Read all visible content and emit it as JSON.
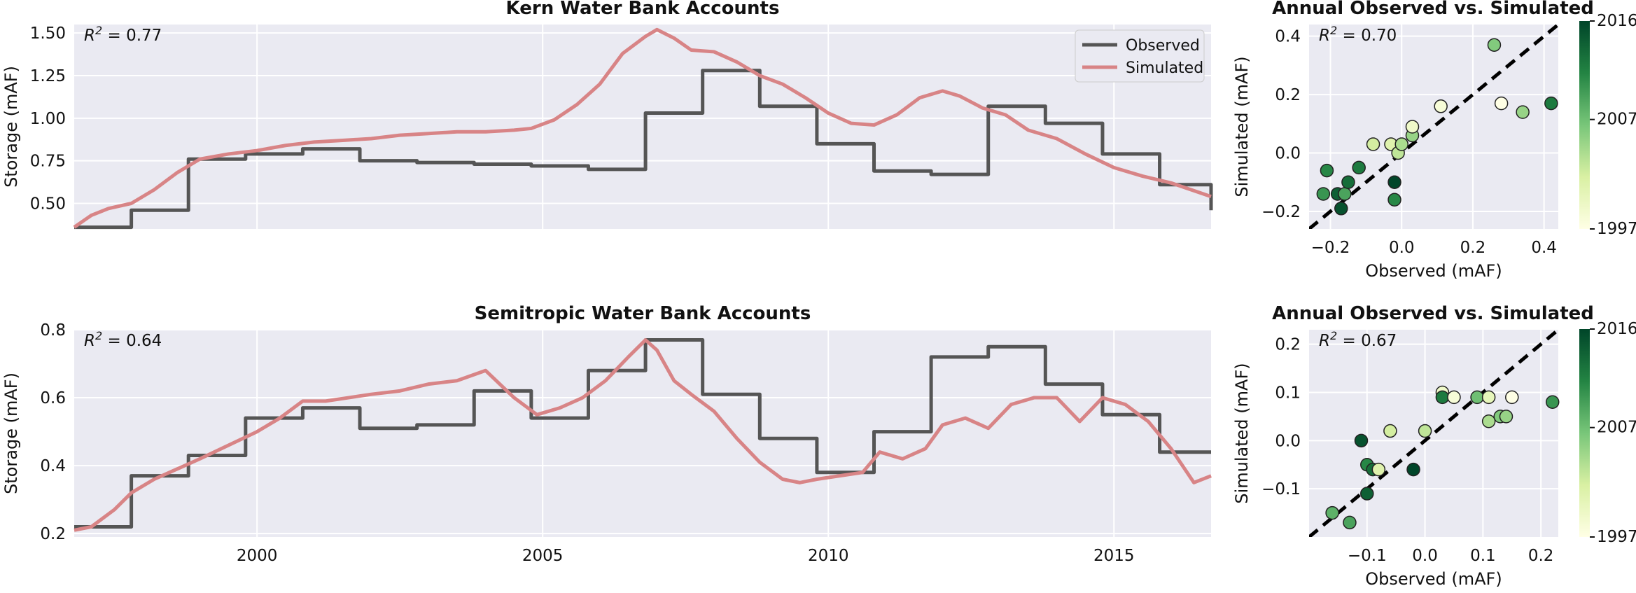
{
  "chart_data": [
    {
      "id": "kern_ts",
      "type": "line",
      "title": "Kern Water Bank Accounts",
      "ylabel": "Storage (mAF)",
      "xlabel": "",
      "xlim": [
        1996.8,
        2016.7
      ],
      "ylim": [
        0.35,
        1.55
      ],
      "yticks": [
        0.5,
        0.75,
        1.0,
        1.25,
        1.5
      ],
      "ytick_labels": [
        "0.50",
        "0.75",
        "1.00",
        "1.25",
        "1.50"
      ],
      "xticks": [
        2000,
        2005,
        2010,
        2015
      ],
      "xtick_labels": [],
      "grid": true,
      "annotation": {
        "prefix": "R",
        "sup": "2",
        "text": " = 0.77"
      },
      "legend": {
        "position": "top-right",
        "entries": [
          "Observed",
          "Simulated"
        ]
      },
      "series": [
        {
          "name": "Observed",
          "color": "#555555",
          "step": true,
          "x": [
            1996.8,
            1997.8,
            1998.8,
            1999.8,
            2000.8,
            2001.8,
            2002.8,
            2003.8,
            2004.8,
            2005.8,
            2006.8,
            2007.8,
            2008.8,
            2009.8,
            2010.8,
            2011.8,
            2012.8,
            2013.8,
            2014.8,
            2015.8,
            2016.7
          ],
          "y": [
            0.36,
            0.46,
            0.76,
            0.79,
            0.82,
            0.75,
            0.74,
            0.73,
            0.72,
            0.7,
            1.03,
            1.28,
            1.07,
            0.85,
            0.69,
            0.67,
            1.07,
            0.97,
            0.79,
            0.61,
            0.46
          ]
        },
        {
          "name": "Simulated",
          "color": "#d88486",
          "step": false,
          "x": [
            1996.8,
            1997.1,
            1997.4,
            1997.8,
            1998.2,
            1998.6,
            1999.0,
            1999.5,
            2000.0,
            2000.5,
            2001.0,
            2001.5,
            2002.0,
            2002.5,
            2003.0,
            2003.5,
            2004.0,
            2004.5,
            2004.8,
            2005.2,
            2005.6,
            2006.0,
            2006.4,
            2006.8,
            2007.0,
            2007.3,
            2007.6,
            2008.0,
            2008.4,
            2008.8,
            2009.2,
            2009.6,
            2010.0,
            2010.4,
            2010.8,
            2011.2,
            2011.6,
            2012.0,
            2012.3,
            2012.7,
            2013.1,
            2013.5,
            2014.0,
            2014.5,
            2015.0,
            2015.5,
            2016.0,
            2016.7
          ],
          "y": [
            0.36,
            0.43,
            0.47,
            0.5,
            0.58,
            0.68,
            0.76,
            0.79,
            0.81,
            0.84,
            0.86,
            0.87,
            0.88,
            0.9,
            0.91,
            0.92,
            0.92,
            0.93,
            0.94,
            0.99,
            1.08,
            1.2,
            1.38,
            1.48,
            1.52,
            1.47,
            1.4,
            1.39,
            1.33,
            1.25,
            1.2,
            1.12,
            1.03,
            0.97,
            0.96,
            1.02,
            1.12,
            1.16,
            1.13,
            1.06,
            1.02,
            0.93,
            0.88,
            0.79,
            0.71,
            0.66,
            0.62,
            0.54
          ]
        }
      ]
    },
    {
      "id": "kern_scatter",
      "type": "scatter",
      "title": "Annual Observed vs. Simulated",
      "xlabel": "Observed (mAF)",
      "ylabel": "Simulated (mAF)",
      "xlim": [
        -0.26,
        0.44
      ],
      "ylim": [
        -0.26,
        0.44
      ],
      "xticks": [
        -0.2,
        0.0,
        0.2,
        0.4
      ],
      "xtick_labels": [
        "−0.2",
        "0.0",
        "0.2",
        "0.4"
      ],
      "yticks": [
        -0.2,
        0.0,
        0.2,
        0.4
      ],
      "ytick_labels": [
        "−0.2",
        "0.0",
        "0.2",
        "0.4"
      ],
      "grid": true,
      "annotation": {
        "prefix": "R",
        "sup": "2",
        "text": " = 0.70"
      },
      "one_to_one_line": true,
      "colorbar": {
        "min": 1997,
        "max": 2016,
        "ticks": [
          1997,
          2007,
          2016
        ],
        "colors": [
          "#ffffe5",
          "#d9f0a3",
          "#78c679",
          "#238443",
          "#004529"
        ]
      },
      "points": [
        {
          "x": -0.22,
          "y": -0.14,
          "year": 2010
        },
        {
          "x": -0.21,
          "y": -0.06,
          "year": 2011
        },
        {
          "x": -0.18,
          "y": -0.14,
          "year": 2014
        },
        {
          "x": -0.17,
          "y": -0.19,
          "year": 2015
        },
        {
          "x": -0.16,
          "y": -0.14,
          "year": 2009
        },
        {
          "x": -0.15,
          "y": -0.1,
          "year": 2013
        },
        {
          "x": -0.12,
          "y": -0.05,
          "year": 2012
        },
        {
          "x": -0.02,
          "y": -0.1,
          "year": 2016
        },
        {
          "x": -0.02,
          "y": -0.16,
          "year": 2011
        },
        {
          "x": -0.08,
          "y": 0.03,
          "year": 2002
        },
        {
          "x": -0.03,
          "y": 0.03,
          "year": 2001
        },
        {
          "x": -0.01,
          "y": 0.0,
          "year": 2003
        },
        {
          "x": 0.0,
          "y": 0.03,
          "year": 2004
        },
        {
          "x": 0.03,
          "y": 0.06,
          "year": 2005
        },
        {
          "x": 0.03,
          "y": 0.09,
          "year": 1999
        },
        {
          "x": 0.11,
          "y": 0.16,
          "year": 1998
        },
        {
          "x": 0.26,
          "y": 0.37,
          "year": 2006
        },
        {
          "x": 0.28,
          "y": 0.17,
          "year": 1997
        },
        {
          "x": 0.34,
          "y": 0.14,
          "year": 2005
        },
        {
          "x": 0.42,
          "y": 0.17,
          "year": 2012
        }
      ]
    },
    {
      "id": "semi_ts",
      "type": "line",
      "title": "Semitropic Water Bank Accounts",
      "ylabel": "Storage (mAF)",
      "xlabel": "",
      "xlim": [
        1996.8,
        2016.7
      ],
      "ylim": [
        0.19,
        0.8
      ],
      "yticks": [
        0.2,
        0.4,
        0.6,
        0.8
      ],
      "ytick_labels": [
        "0.2",
        "0.4",
        "0.6",
        "0.8"
      ],
      "xticks": [
        2000,
        2005,
        2010,
        2015
      ],
      "xtick_labels": [
        "2000",
        "2005",
        "2010",
        "2015"
      ],
      "grid": true,
      "annotation": {
        "prefix": "R",
        "sup": "2",
        "text": " = 0.64"
      },
      "series": [
        {
          "name": "Observed",
          "color": "#555555",
          "step": true,
          "x": [
            1996.8,
            1997.8,
            1998.8,
            1999.8,
            2000.8,
            2001.8,
            2002.8,
            2003.8,
            2004.8,
            2005.8,
            2006.8,
            2007.8,
            2008.8,
            2009.8,
            2010.8,
            2011.8,
            2012.8,
            2013.8,
            2014.8,
            2015.8,
            2016.7
          ],
          "y": [
            0.22,
            0.37,
            0.43,
            0.54,
            0.57,
            0.51,
            0.52,
            0.62,
            0.54,
            0.68,
            0.77,
            0.61,
            0.48,
            0.38,
            0.5,
            0.72,
            0.75,
            0.64,
            0.55,
            0.44,
            0.44
          ]
        },
        {
          "name": "Simulated",
          "color": "#d88486",
          "step": false,
          "x": [
            1996.8,
            1997.1,
            1997.5,
            1997.8,
            1998.2,
            1998.6,
            1999.0,
            1999.5,
            2000.0,
            2000.4,
            2000.8,
            2001.2,
            2001.6,
            2002.0,
            2002.5,
            2003.0,
            2003.5,
            2004.0,
            2004.5,
            2004.9,
            2005.3,
            2005.7,
            2006.1,
            2006.5,
            2006.8,
            2007.0,
            2007.3,
            2007.6,
            2008.0,
            2008.4,
            2008.8,
            2009.2,
            2009.5,
            2009.8,
            2010.2,
            2010.6,
            2010.9,
            2011.3,
            2011.7,
            2012.0,
            2012.4,
            2012.8,
            2013.2,
            2013.6,
            2014.0,
            2014.4,
            2014.8,
            2015.2,
            2015.6,
            2016.0,
            2016.4,
            2016.7
          ],
          "y": [
            0.21,
            0.22,
            0.27,
            0.32,
            0.36,
            0.39,
            0.42,
            0.46,
            0.5,
            0.54,
            0.59,
            0.59,
            0.6,
            0.61,
            0.62,
            0.64,
            0.65,
            0.68,
            0.6,
            0.55,
            0.57,
            0.6,
            0.65,
            0.72,
            0.77,
            0.74,
            0.65,
            0.61,
            0.56,
            0.48,
            0.41,
            0.36,
            0.35,
            0.36,
            0.37,
            0.38,
            0.44,
            0.42,
            0.45,
            0.52,
            0.54,
            0.51,
            0.58,
            0.6,
            0.6,
            0.53,
            0.6,
            0.58,
            0.53,
            0.45,
            0.35,
            0.37
          ]
        }
      ]
    },
    {
      "id": "semi_scatter",
      "type": "scatter",
      "title": "Annual Observed vs. Simulated",
      "xlabel": "Observed (mAF)",
      "ylabel": "Simulated (mAF)",
      "xlim": [
        -0.2,
        0.23
      ],
      "ylim": [
        -0.2,
        0.23
      ],
      "xticks": [
        -0.1,
        0.0,
        0.1,
        0.2
      ],
      "xtick_labels": [
        "−0.1",
        "0.0",
        "0.1",
        "0.2"
      ],
      "yticks": [
        -0.1,
        0.0,
        0.1,
        0.2
      ],
      "ytick_labels": [
        "−0.1",
        "0.0",
        "0.1",
        "0.2"
      ],
      "grid": true,
      "annotation": {
        "prefix": "R",
        "sup": "2",
        "text": " = 0.67"
      },
      "one_to_one_line": true,
      "colorbar": {
        "min": 1997,
        "max": 2016,
        "ticks": [
          1997,
          2007,
          2016
        ],
        "colors": [
          "#ffffe5",
          "#d9f0a3",
          "#78c679",
          "#238443",
          "#004529"
        ]
      },
      "points": [
        {
          "x": -0.16,
          "y": -0.15,
          "year": 2008
        },
        {
          "x": -0.13,
          "y": -0.17,
          "year": 2009
        },
        {
          "x": -0.11,
          "y": 0.0,
          "year": 2015
        },
        {
          "x": -0.1,
          "y": -0.05,
          "year": 2011
        },
        {
          "x": -0.09,
          "y": -0.06,
          "year": 2013
        },
        {
          "x": -0.1,
          "y": -0.11,
          "year": 2014
        },
        {
          "x": -0.08,
          "y": -0.06,
          "year": 2001
        },
        {
          "x": -0.06,
          "y": 0.02,
          "year": 2002
        },
        {
          "x": -0.02,
          "y": -0.06,
          "year": 2016
        },
        {
          "x": 0.0,
          "y": 0.02,
          "year": 2003
        },
        {
          "x": 0.03,
          "y": 0.1,
          "year": 1999
        },
        {
          "x": 0.03,
          "y": 0.09,
          "year": 2012
        },
        {
          "x": 0.05,
          "y": 0.09,
          "year": 1998
        },
        {
          "x": 0.09,
          "y": 0.09,
          "year": 2007
        },
        {
          "x": 0.11,
          "y": 0.09,
          "year": 2000
        },
        {
          "x": 0.11,
          "y": 0.04,
          "year": 2004
        },
        {
          "x": 0.13,
          "y": 0.05,
          "year": 2006
        },
        {
          "x": 0.14,
          "y": 0.05,
          "year": 2005
        },
        {
          "x": 0.15,
          "y": 0.09,
          "year": 1997
        },
        {
          "x": 0.22,
          "y": 0.08,
          "year": 2010
        }
      ]
    }
  ]
}
